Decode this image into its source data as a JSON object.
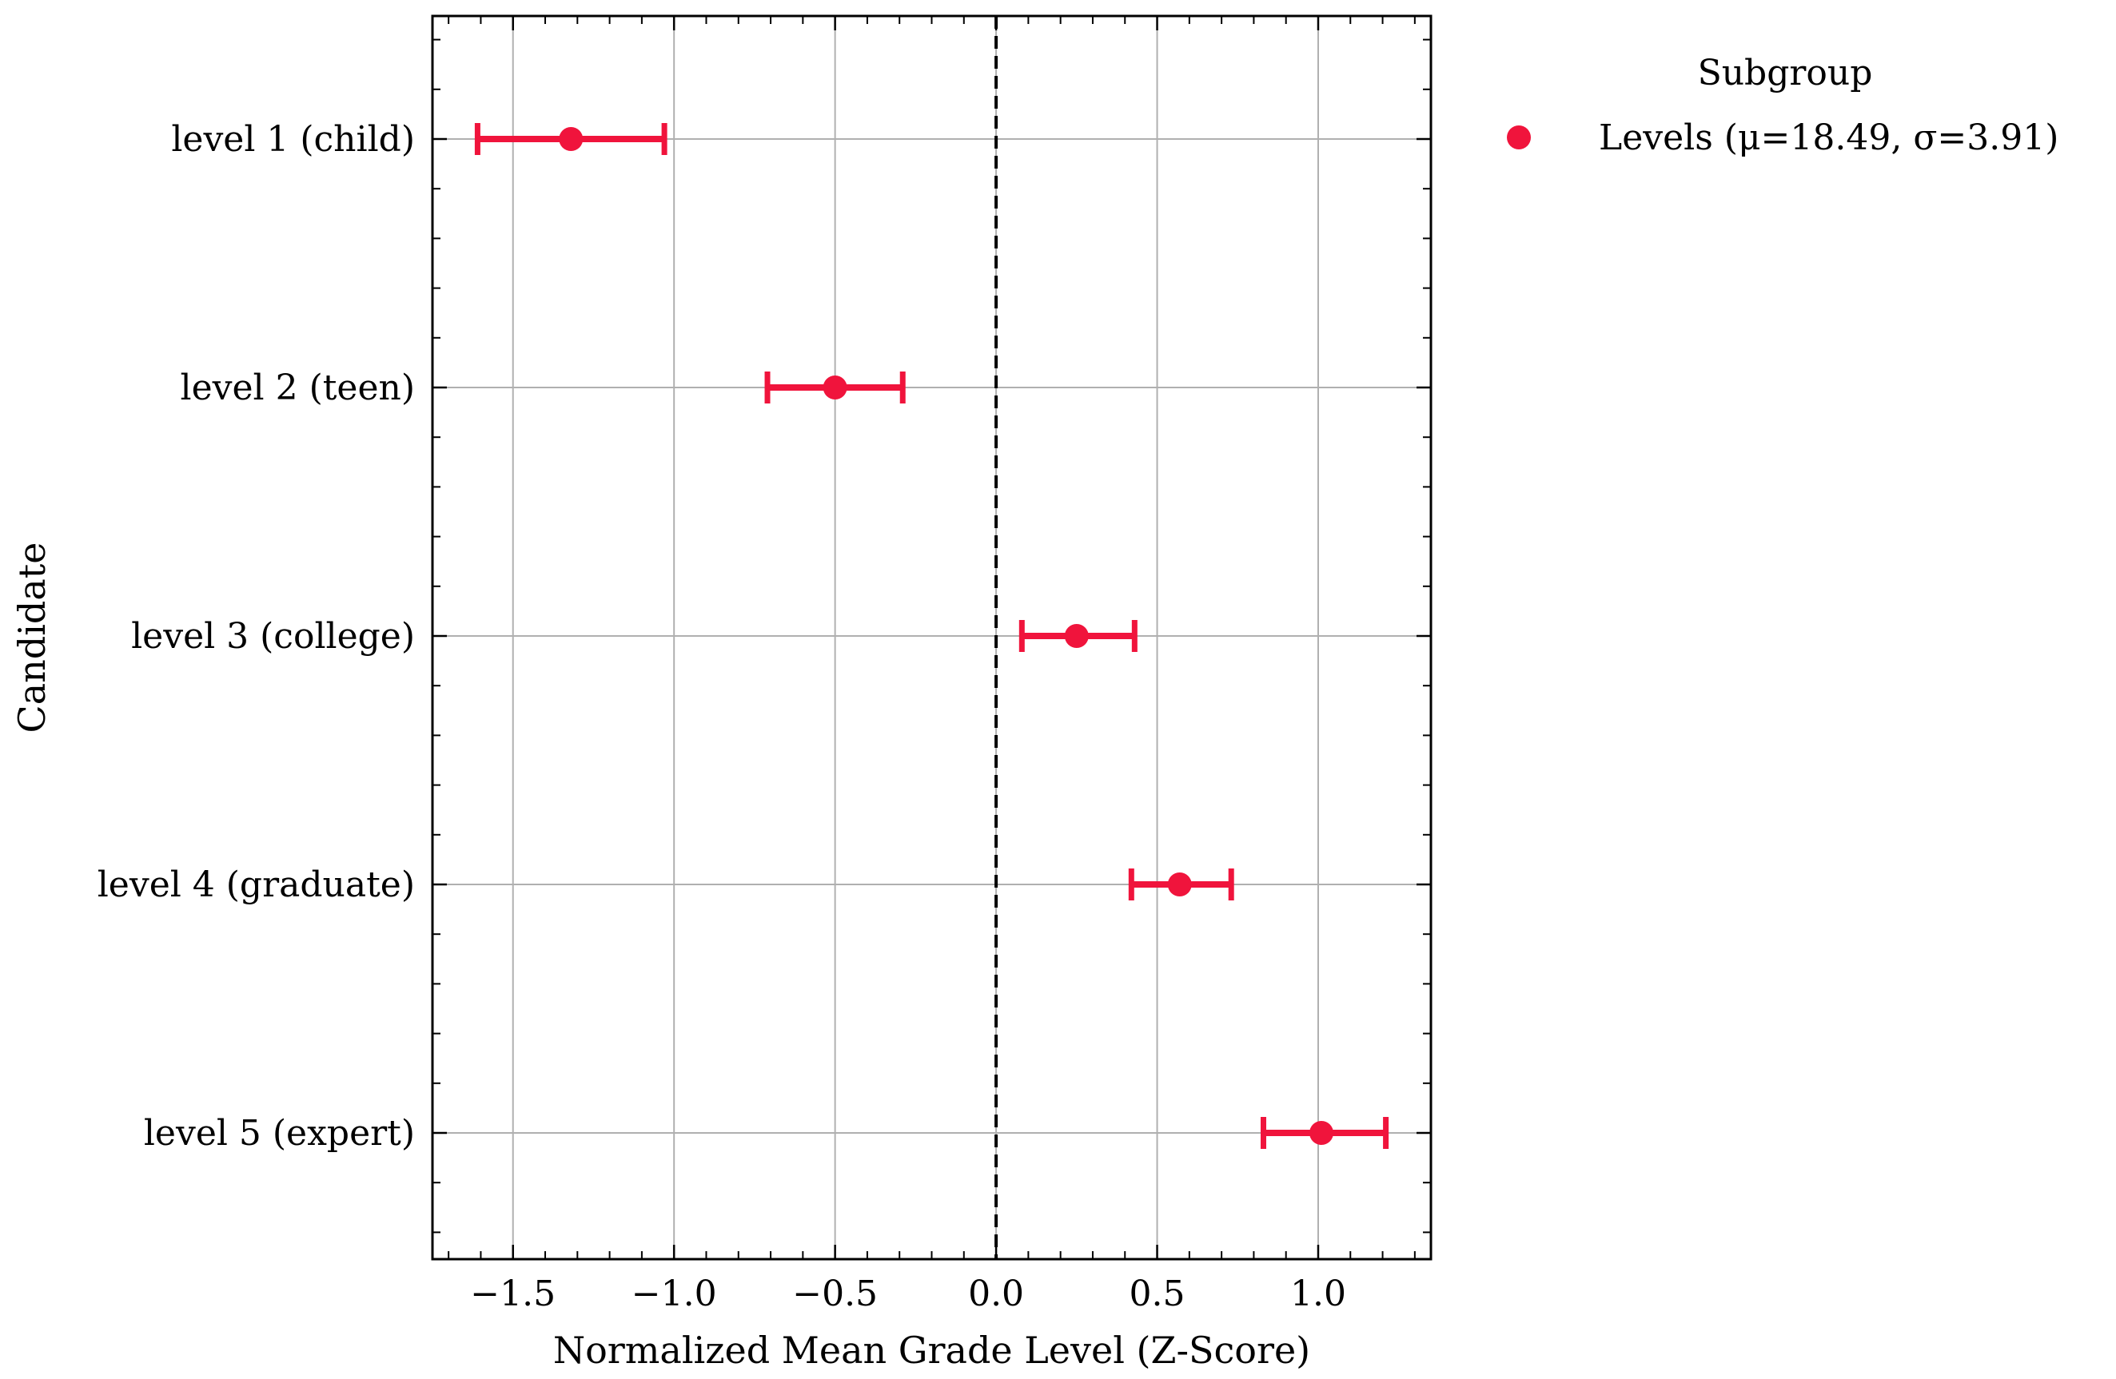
{
  "chart_data": {
    "type": "errorbar",
    "orientation": "horizontal",
    "title": "",
    "xlabel": "Normalized Mean Grade Level (Z-Score)",
    "ylabel": "Candidate",
    "xlim": [
      -1.75,
      1.35
    ],
    "x_ticks": [
      -1.5,
      -1.0,
      -0.5,
      0.0,
      0.5,
      1.0
    ],
    "x_tick_labels": [
      "−1.5",
      "−1.0",
      "−0.5",
      "0.0",
      "0.5",
      "1.0"
    ],
    "grid": true,
    "reference_line": {
      "x": 0.0,
      "style": "dashed",
      "color": "#000000"
    },
    "categories": [
      "level 1 (child)",
      "level 2 (teen)",
      "level 3 (college)",
      "level 4 (graduate)",
      "level 5 (expert)"
    ],
    "series": [
      {
        "name": "Levels (μ=18.49, σ=3.91)",
        "color": "#f0143c",
        "values": [
          -1.32,
          -0.5,
          0.25,
          0.57,
          1.01
        ],
        "lower": [
          -1.61,
          -0.71,
          0.08,
          0.42,
          0.83
        ],
        "upper": [
          -1.03,
          -0.29,
          0.43,
          0.73,
          1.21
        ]
      }
    ],
    "legend": {
      "title": "Subgroup",
      "placement": "outside-top-right"
    }
  }
}
